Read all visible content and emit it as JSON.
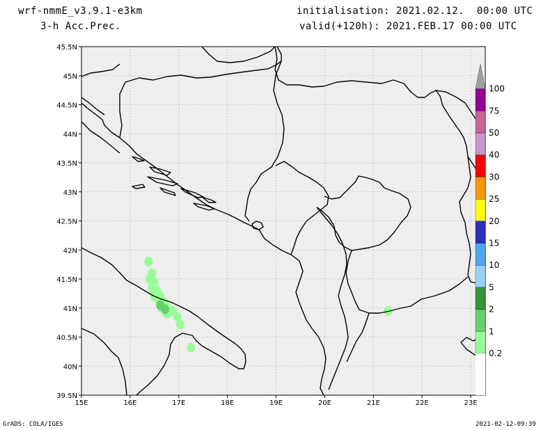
{
  "header": {
    "model": "wrf-nmmE_v3.9.1-e3km",
    "field": "3-h Acc.Prec.",
    "init": "initialisation: 2021.02.12.  00:00 UTC",
    "valid": "valid(+120h): 2021.FEB.17 00:00 UTC"
  },
  "footer": {
    "left": "GrADS: COLA/IGES",
    "right": "2021-02-12-09:39"
  },
  "colors": {
    "background": "#eeeeee",
    "coast": "#000000",
    "grid": "#aaaaaa"
  },
  "chart_data": {
    "type": "heatmap",
    "title": "3-h Acc.Prec.",
    "x_ticks": [
      {
        "value": 15,
        "label": "15E"
      },
      {
        "value": 16,
        "label": "16E"
      },
      {
        "value": 17,
        "label": "17E"
      },
      {
        "value": 18,
        "label": "18E"
      },
      {
        "value": 19,
        "label": "19E"
      },
      {
        "value": 20,
        "label": "20E"
      },
      {
        "value": 21,
        "label": "21E"
      },
      {
        "value": 22,
        "label": "22E"
      },
      {
        "value": 23,
        "label": "23E"
      }
    ],
    "y_ticks": [
      {
        "value": 39.5,
        "label": "39.5N"
      },
      {
        "value": 40,
        "label": "40N"
      },
      {
        "value": 40.5,
        "label": "40.5N"
      },
      {
        "value": 41,
        "label": "41N"
      },
      {
        "value": 41.5,
        "label": "41.5N"
      },
      {
        "value": 42,
        "label": "42N"
      },
      {
        "value": 42.5,
        "label": "42.5N"
      },
      {
        "value": 43,
        "label": "43N"
      },
      {
        "value": 43.5,
        "label": "43.5N"
      },
      {
        "value": 44,
        "label": "44N"
      },
      {
        "value": 44.5,
        "label": "44.5N"
      },
      {
        "value": 45,
        "label": "45N"
      },
      {
        "value": 45.5,
        "label": "45.5N"
      }
    ],
    "xlim": [
      15,
      23.3
    ],
    "ylim": [
      39.5,
      45.5
    ],
    "grid": true,
    "colorbar": {
      "levels": [
        "0.2",
        "1",
        "2",
        "5",
        "10",
        "15",
        "20",
        "25",
        "30",
        "40",
        "50",
        "75",
        "100"
      ],
      "colors": [
        "#96ff96",
        "#64d264",
        "#329632",
        "#96d2fa",
        "#50a5f5",
        "#2d2dbe",
        "#ffff00",
        "#ff9600",
        "#ff0000",
        "#c896c8",
        "#c86496",
        "#960096",
        "#a0a0a0"
      ]
    },
    "precip_cells": [
      {
        "lon": 16.38,
        "lat": 41.8,
        "level": 0
      },
      {
        "lon": 16.45,
        "lat": 41.6,
        "level": 0
      },
      {
        "lon": 16.4,
        "lat": 41.5,
        "level": 0
      },
      {
        "lon": 16.5,
        "lat": 41.45,
        "level": 0
      },
      {
        "lon": 16.45,
        "lat": 41.35,
        "level": 0
      },
      {
        "lon": 16.55,
        "lat": 41.3,
        "level": 0
      },
      {
        "lon": 16.5,
        "lat": 41.2,
        "level": 0
      },
      {
        "lon": 16.62,
        "lat": 41.2,
        "level": 0
      },
      {
        "lon": 16.6,
        "lat": 41.1,
        "level": 0
      },
      {
        "lon": 16.7,
        "lat": 41.1,
        "level": 0
      },
      {
        "lon": 16.65,
        "lat": 41.0,
        "level": 0
      },
      {
        "lon": 16.78,
        "lat": 41.0,
        "level": 0
      },
      {
        "lon": 16.75,
        "lat": 40.9,
        "level": 0
      },
      {
        "lon": 16.87,
        "lat": 40.95,
        "level": 0
      },
      {
        "lon": 16.97,
        "lat": 40.85,
        "level": 0
      },
      {
        "lon": 17.03,
        "lat": 40.72,
        "level": 0
      },
      {
        "lon": 17.25,
        "lat": 40.32,
        "level": 0
      },
      {
        "lon": 16.62,
        "lat": 41.05,
        "level": 1
      },
      {
        "lon": 16.72,
        "lat": 40.98,
        "level": 1
      },
      {
        "lon": 21.3,
        "lat": 40.95,
        "level": 0
      }
    ]
  }
}
